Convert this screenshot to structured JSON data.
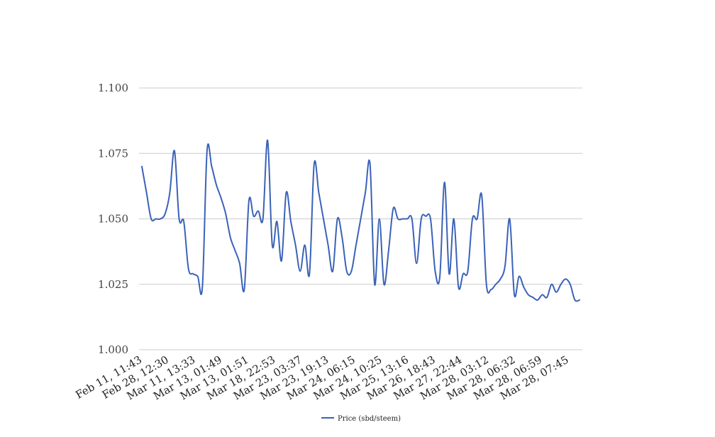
{
  "chart_data": {
    "type": "line",
    "title": "",
    "xlabel": "",
    "ylabel": "",
    "ylim": [
      1.0,
      1.1
    ],
    "y_ticks": [
      "1.000",
      "1.025",
      "1.050",
      "1.075",
      "1.100"
    ],
    "grid": "horizontal",
    "x_tick_labels": [
      "Feb 11, 11:43",
      "Feb 28, 12:30",
      "Mar 11, 13:33",
      "Mar 13, 01:49",
      "Mar 13, 01:51",
      "Mar 18, 22:53",
      "Mar 23, 03:37",
      "Mar 23, 19:13",
      "Mar 24, 06:15",
      "Mar 24, 10:25",
      "Mar 25, 13:16",
      "Mar 26, 18:43",
      "Mar 27, 22:44",
      "Mar 28, 03:12",
      "Mar 28, 06:32",
      "Mar 28, 06:59",
      "Mar 28, 07:45"
    ],
    "legend_position": "bottom-center",
    "series": [
      {
        "name": "Price (sbd/steem)",
        "color": "#3a62b8",
        "values": [
          1.07,
          1.06,
          1.05,
          1.05,
          1.05,
          1.052,
          1.06,
          1.076,
          1.05,
          1.049,
          1.031,
          1.029,
          1.028,
          1.024,
          1.076,
          1.07,
          1.063,
          1.058,
          1.052,
          1.043,
          1.038,
          1.033,
          1.023,
          1.057,
          1.051,
          1.053,
          1.05,
          1.08,
          1.04,
          1.049,
          1.034,
          1.06,
          1.049,
          1.04,
          1.03,
          1.04,
          1.029,
          1.071,
          1.06,
          1.05,
          1.04,
          1.03,
          1.05,
          1.043,
          1.03,
          1.03,
          1.04,
          1.05,
          1.06,
          1.071,
          1.025,
          1.05,
          1.025,
          1.038,
          1.054,
          1.05,
          1.05,
          1.05,
          1.05,
          1.033,
          1.05,
          1.051,
          1.05,
          1.03,
          1.028,
          1.064,
          1.029,
          1.05,
          1.024,
          1.029,
          1.03,
          1.05,
          1.05,
          1.059,
          1.025,
          1.023,
          1.025,
          1.027,
          1.032,
          1.05,
          1.021,
          1.028,
          1.024,
          1.021,
          1.02,
          1.019,
          1.021,
          1.02,
          1.025,
          1.022,
          1.025,
          1.027,
          1.025,
          1.019,
          1.019
        ]
      }
    ]
  }
}
